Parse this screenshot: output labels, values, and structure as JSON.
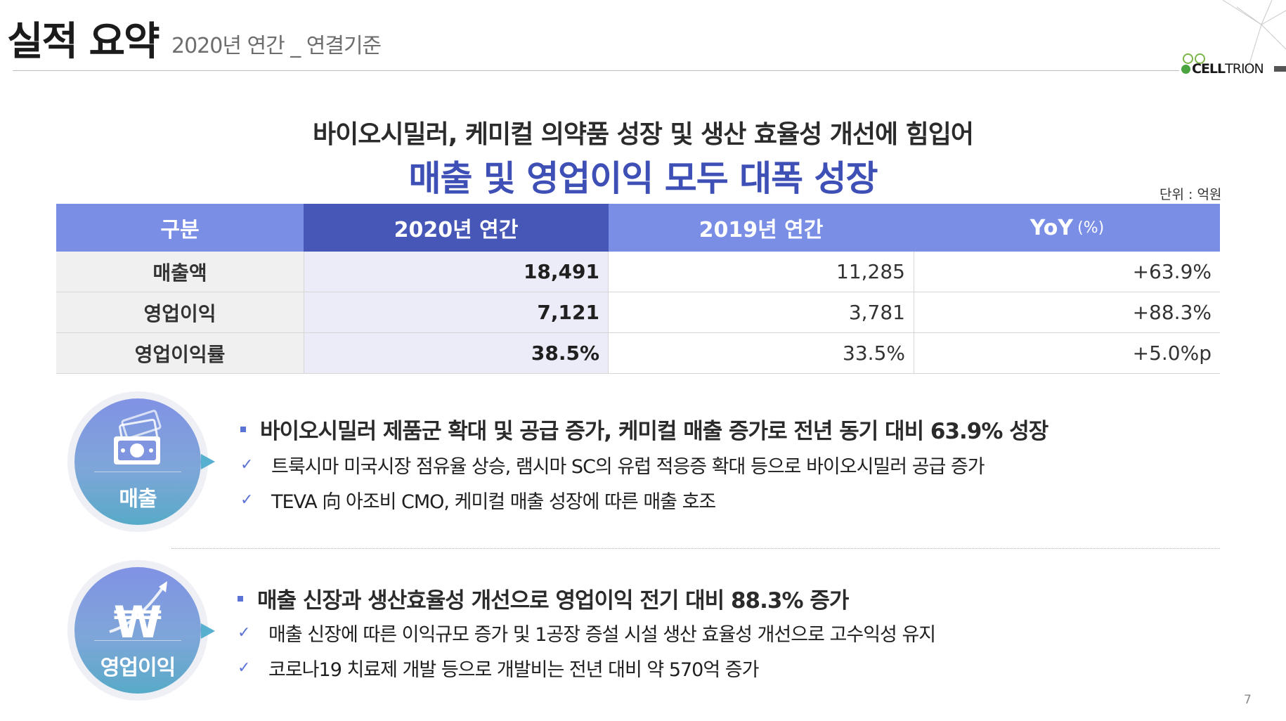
{
  "header": {
    "title": "실적 요약",
    "subtitle": "2020년 연간 _ 연결기준",
    "logo_text_bold": "CELL",
    "logo_text_light": "TRION"
  },
  "headline": {
    "line1": "바이오시밀러, 케미컬 의약품 성장 및 생산 효율성 개선에 힘입어",
    "line2": "매출 및 영업이익 모두 대폭 성장"
  },
  "unit_label": "단위 : 억원",
  "table": {
    "headers": [
      "구분",
      "2020년 연간",
      "2019년 연간",
      "YoY"
    ],
    "yoy_unit": "(%)",
    "rows": [
      [
        "매출액",
        "18,491",
        "11,285",
        "+63.9%"
      ],
      [
        "영업이익",
        "7,121",
        "3,781",
        "+88.3%"
      ],
      [
        "영업이익률",
        "38.5%",
        "33.5%",
        "+5.0%p"
      ]
    ]
  },
  "sections": [
    {
      "label": "매출",
      "icon": "money-icon",
      "main": "바이오시밀러 제품군 확대 및 공급 증가, 케미컬 매출 증가로 전년 동기 대비 63.9% 성장",
      "subs": [
        "트룩시마 미국시장 점유율 상승, 램시마 SC의 유럽 적응증 확대 등으로 바이오시밀러 공급 증가",
        "TEVA 向 아조비 CMO, 케미컬 매출 성장에 따른 매출 호조"
      ]
    },
    {
      "label": "영업이익",
      "icon": "won-growth-icon",
      "main": "매출 신장과 생산효율성 개선으로 영업이익 전기 대비 88.3% 증가",
      "subs": [
        "매출 신장에 따른 이익규모 증가 및 1공장 증설 시설 생산 효율성 개선으로 고수익성 유지",
        "코로나19 치료제 개발 등으로 개발비는 전년 대비 약 570억 증가"
      ]
    }
  ],
  "page_number": "7",
  "colors": {
    "accent": "#3e4fb5",
    "header_dark": "#4657b8",
    "header_light": "#7a8ee6",
    "logo_green": "#4aa541"
  }
}
